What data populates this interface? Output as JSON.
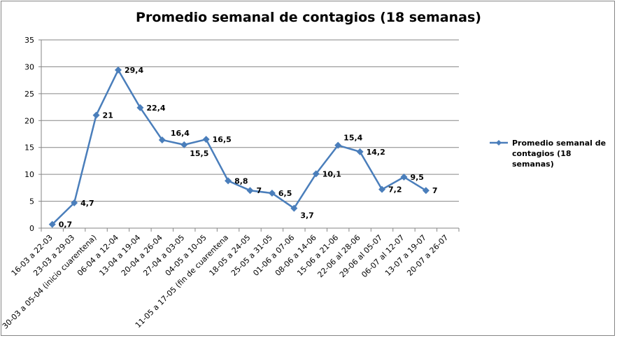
{
  "chart_data": {
    "type": "line",
    "title": "Promedio semanal de contagios (18 semanas)",
    "xlabel": "",
    "ylabel": "",
    "ylim": [
      0,
      35
    ],
    "yticks": [
      "0",
      "5",
      "10",
      "15",
      "20",
      "25",
      "30",
      "35"
    ],
    "grid": true,
    "legend_position": "right",
    "categories": [
      "16-03 a 22-03",
      "23-03 a 29-03",
      "30-03 a 05-04 (inicio cuarentena)",
      "06-04 a 12-04",
      "13-04 a 19-04",
      "20-04 a 26-04",
      "27-04 a 03-05",
      "04-05 a 10-05",
      "11-05 a 17-05 (fin de cuarentena",
      "18-05 a 24-05",
      "25-05 a 31-05",
      "01-06 a 07-06",
      "08-06 a 14-06",
      "15-06 a 21-06",
      "22-06 al 28-06",
      "29-06 al 05-07",
      "06-07 al 12-07",
      "13-07 a 19-07",
      "20-07 a 26-07"
    ],
    "series": [
      {
        "name": "Promedio semanal de contagios (18 semanas)",
        "color": "#4a7ebb",
        "values": [
          0.7,
          4.7,
          21,
          29.4,
          22.4,
          16.4,
          15.5,
          16.5,
          8.8,
          7,
          6.5,
          3.7,
          10.1,
          15.4,
          14.2,
          7.2,
          9.5,
          7,
          null
        ],
        "labels": [
          "0,7",
          "4,7",
          "21",
          "29,4",
          "22,4",
          "16,4",
          "15,5",
          "16,5",
          "8,8",
          "7",
          "6,5",
          "3,7",
          "10,1",
          "15,4",
          "14,2",
          "7,2",
          "9,5",
          "7",
          null
        ]
      }
    ]
  }
}
